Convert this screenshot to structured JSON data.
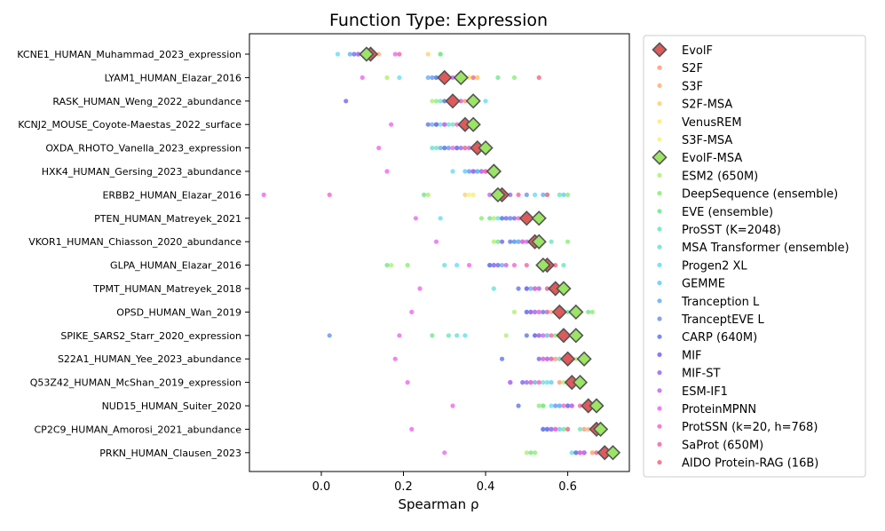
{
  "chart_data": {
    "type": "scatter",
    "title": "Function Type: Expression",
    "xlabel": "Spearman ρ",
    "ylabel": "",
    "xlim": [
      -0.175,
      0.75
    ],
    "xticks": [
      0.0,
      0.2,
      0.4,
      0.6
    ],
    "xtick_labels": [
      "0.0",
      "0.2",
      "0.4",
      "0.6"
    ],
    "categories": [
      "KCNE1_HUMAN_Muhammad_2023_expression",
      "LYAM1_HUMAN_Elazar_2016",
      "RASK_HUMAN_Weng_2022_abundance",
      "KCNJ2_MOUSE_Coyote-Maestas_2022_surface",
      "OXDA_RHOTO_Vanella_2023_expression",
      "HXK4_HUMAN_Gersing_2023_abundance",
      "ERBB2_HUMAN_Elazar_2016",
      "PTEN_HUMAN_Matreyek_2021",
      "VKOR1_HUMAN_Chiasson_2020_abundance",
      "GLPA_HUMAN_Elazar_2016",
      "TPMT_HUMAN_Matreyek_2018",
      "OPSD_HUMAN_Wan_2019",
      "SPIKE_SARS2_Starr_2020_expression",
      "S22A1_HUMAN_Yee_2023_abundance",
      "Q53Z42_HUMAN_McShan_2019_expression",
      "NUD15_HUMAN_Suiter_2020",
      "CP2C9_HUMAN_Amorosi_2021_abundance",
      "PRKN_HUMAN_Clausen_2023"
    ],
    "series": [
      {
        "name": "EvolF",
        "marker": "diamond",
        "color": "#e05a5a",
        "values": [
          0.12,
          0.3,
          0.32,
          0.35,
          0.38,
          0.42,
          0.44,
          0.5,
          0.52,
          0.55,
          0.57,
          0.58,
          0.59,
          0.6,
          0.61,
          0.65,
          0.67,
          0.69
        ]
      },
      {
        "name": "S2F",
        "marker": "dot",
        "color": "#ff9f80",
        "values": [
          0.1,
          0.38,
          0.35,
          0.34,
          0.38,
          0.41,
          0.43,
          0.5,
          0.53,
          0.54,
          0.55,
          0.57,
          0.53,
          0.57,
          0.58,
          0.64,
          0.64,
          0.66
        ]
      },
      {
        "name": "S3F",
        "marker": "dot",
        "color": "#ffb380",
        "values": [
          0.14,
          0.36,
          0.33,
          0.35,
          0.37,
          0.42,
          0.42,
          0.49,
          0.52,
          0.55,
          0.55,
          0.56,
          0.55,
          0.58,
          0.6,
          0.64,
          0.65,
          0.66
        ]
      },
      {
        "name": "S2F-MSA",
        "marker": "dot",
        "color": "#ffd27f",
        "values": [
          0.26,
          0.38,
          0.3,
          0.35,
          0.36,
          0.41,
          0.35,
          0.5,
          0.53,
          0.54,
          0.57,
          0.58,
          0.55,
          0.58,
          0.6,
          0.65,
          0.66,
          0.67
        ]
      },
      {
        "name": "VenusREM",
        "marker": "dot",
        "color": "#ffeb80",
        "values": [
          0.1,
          0.36,
          0.34,
          0.34,
          0.38,
          0.42,
          0.37,
          0.5,
          0.53,
          0.55,
          0.56,
          0.59,
          0.56,
          0.59,
          0.61,
          0.65,
          0.66,
          0.67
        ]
      },
      {
        "name": "S3F-MSA",
        "marker": "dot",
        "color": "#f2f58a",
        "values": [
          0.12,
          0.37,
          0.33,
          0.35,
          0.39,
          0.42,
          0.36,
          0.51,
          0.54,
          0.56,
          0.57,
          0.6,
          0.57,
          0.6,
          0.62,
          0.66,
          0.67,
          0.68
        ]
      },
      {
        "name": "EvolF-MSA",
        "marker": "diamond",
        "color": "#9be564",
        "values": [
          0.11,
          0.34,
          0.37,
          0.37,
          0.4,
          0.42,
          0.43,
          0.53,
          0.53,
          0.54,
          0.59,
          0.62,
          0.62,
          0.64,
          0.63,
          0.67,
          0.68,
          0.71
        ]
      },
      {
        "name": "ESM2 (650M)",
        "marker": "dot",
        "color": "#b5f07a",
        "values": [
          0.12,
          0.16,
          0.27,
          0.38,
          0.33,
          0.38,
          0.26,
          0.42,
          0.42,
          0.17,
          0.52,
          0.47,
          0.45,
          0.62,
          0.59,
          0.54,
          0.55,
          0.5
        ]
      },
      {
        "name": "DeepSequence (ensemble)",
        "marker": "dot",
        "color": "#8ff07a",
        "values": [
          0.29,
          0.47,
          0.28,
          0.28,
          0.35,
          0.42,
          0.6,
          0.39,
          0.6,
          0.21,
          0.57,
          0.66,
          0.57,
          0.63,
          0.6,
          0.53,
          0.6,
          0.52
        ]
      },
      {
        "name": "EVE (ensemble)",
        "marker": "dot",
        "color": "#7ae88f",
        "values": [
          0.29,
          0.43,
          0.36,
          0.36,
          0.37,
          0.4,
          0.25,
          0.41,
          0.43,
          0.16,
          0.56,
          0.65,
          0.27,
          0.61,
          0.6,
          0.54,
          0.59,
          0.51
        ]
      },
      {
        "name": "ProSST (K=2048)",
        "marker": "dot",
        "color": "#74e8bb",
        "values": [
          0.13,
          0.33,
          0.33,
          0.32,
          0.28,
          0.4,
          0.58,
          0.44,
          0.56,
          0.59,
          0.52,
          0.6,
          0.31,
          0.64,
          0.6,
          0.6,
          0.63,
          0.67
        ]
      },
      {
        "name": "MSA Transformer (ensemble)",
        "marker": "dot",
        "color": "#70e3d9",
        "values": [
          0.11,
          0.28,
          0.29,
          0.31,
          0.27,
          0.38,
          0.55,
          0.43,
          0.49,
          0.3,
          0.42,
          0.5,
          0.33,
          0.58,
          0.55,
          0.58,
          0.56,
          0.61
        ]
      },
      {
        "name": "Progen2 XL",
        "marker": "dot",
        "color": "#6fdff2",
        "values": [
          0.04,
          0.19,
          0.4,
          0.29,
          0.3,
          0.32,
          0.52,
          0.29,
          0.47,
          0.33,
          0.55,
          0.53,
          0.35,
          0.6,
          0.54,
          0.56,
          0.56,
          0.64
        ]
      },
      {
        "name": "GEMME",
        "marker": "dot",
        "color": "#6fcdf5",
        "values": [
          0.09,
          0.3,
          0.34,
          0.34,
          0.33,
          0.35,
          0.59,
          0.45,
          0.48,
          0.42,
          0.53,
          0.55,
          0.55,
          0.63,
          0.56,
          0.6,
          0.58,
          0.64
        ]
      },
      {
        "name": "Tranception L",
        "marker": "dot",
        "color": "#6fb4f5",
        "values": [
          0.07,
          0.26,
          0.31,
          0.27,
          0.29,
          0.38,
          0.54,
          0.46,
          0.48,
          0.44,
          0.51,
          0.52,
          0.52,
          0.56,
          0.52,
          0.58,
          0.55,
          0.63
        ]
      },
      {
        "name": "TranceptEVE L",
        "marker": "dot",
        "color": "#709af2",
        "values": [
          0.1,
          0.27,
          0.32,
          0.28,
          0.31,
          0.36,
          0.5,
          0.46,
          0.47,
          0.41,
          0.5,
          0.51,
          0.02,
          0.54,
          0.51,
          0.57,
          0.54,
          0.62
        ]
      },
      {
        "name": "CARP (640M)",
        "marker": "dot",
        "color": "#6a7fe8",
        "values": [
          0.08,
          0.28,
          0.3,
          0.26,
          0.3,
          0.39,
          0.43,
          0.44,
          0.46,
          0.41,
          0.48,
          0.54,
          0.5,
          0.44,
          0.46,
          0.48,
          0.54,
          0.62
        ]
      },
      {
        "name": "MIF",
        "marker": "dot",
        "color": "#7a6ff2",
        "values": [
          0.09,
          0.29,
          0.06,
          0.28,
          0.33,
          0.37,
          0.44,
          0.47,
          0.44,
          0.43,
          0.5,
          0.5,
          0.52,
          0.53,
          0.49,
          0.6,
          0.55,
          0.63
        ]
      },
      {
        "name": "MIF-ST",
        "marker": "dot",
        "color": "#a06ff2",
        "values": [
          0.1,
          0.3,
          0.31,
          0.3,
          0.34,
          0.37,
          0.46,
          0.45,
          0.49,
          0.42,
          0.52,
          0.51,
          0.53,
          0.55,
          0.5,
          0.61,
          0.56,
          0.64
        ]
      },
      {
        "name": "ESM-IF1",
        "marker": "dot",
        "color": "#c86ff2",
        "values": [
          0.09,
          0.32,
          0.32,
          0.3,
          0.36,
          0.39,
          0.41,
          0.49,
          0.5,
          0.45,
          0.53,
          0.52,
          0.54,
          0.55,
          0.46,
          0.61,
          0.57,
          0.64
        ]
      },
      {
        "name": "ProteinMPNN",
        "marker": "dot",
        "color": "#ef6ff2",
        "values": [
          0.18,
          0.1,
          0.33,
          0.17,
          0.14,
          0.16,
          -0.14,
          0.23,
          0.28,
          0.36,
          0.24,
          0.22,
          0.19,
          0.18,
          0.21,
          0.32,
          0.22,
          0.3
        ]
      },
      {
        "name": "ProtSSN (k=20, h=768)",
        "marker": "dot",
        "color": "#f56fcd",
        "values": [
          0.13,
          0.33,
          0.34,
          0.33,
          0.32,
          0.4,
          0.02,
          0.48,
          0.49,
          0.47,
          0.52,
          0.53,
          0.56,
          0.54,
          0.51,
          0.59,
          0.57,
          0.63
        ]
      },
      {
        "name": "SaProt (650M)",
        "marker": "dot",
        "color": "#f56fa6",
        "values": [
          0.19,
          0.37,
          0.32,
          0.34,
          0.35,
          0.4,
          0.48,
          0.49,
          0.51,
          0.5,
          0.55,
          0.55,
          0.58,
          0.56,
          0.53,
          0.63,
          0.6,
          0.67
        ]
      },
      {
        "name": "AIDO Protein-RAG (16B)",
        "marker": "dot",
        "color": "#f2708a",
        "values": [
          0.1,
          0.53,
          0.37,
          0.36,
          0.37,
          0.42,
          0.55,
          0.5,
          0.53,
          0.57,
          0.57,
          0.58,
          0.6,
          0.59,
          0.62,
          0.66,
          0.66,
          0.68
        ]
      }
    ],
    "legend_position": "outside right"
  }
}
